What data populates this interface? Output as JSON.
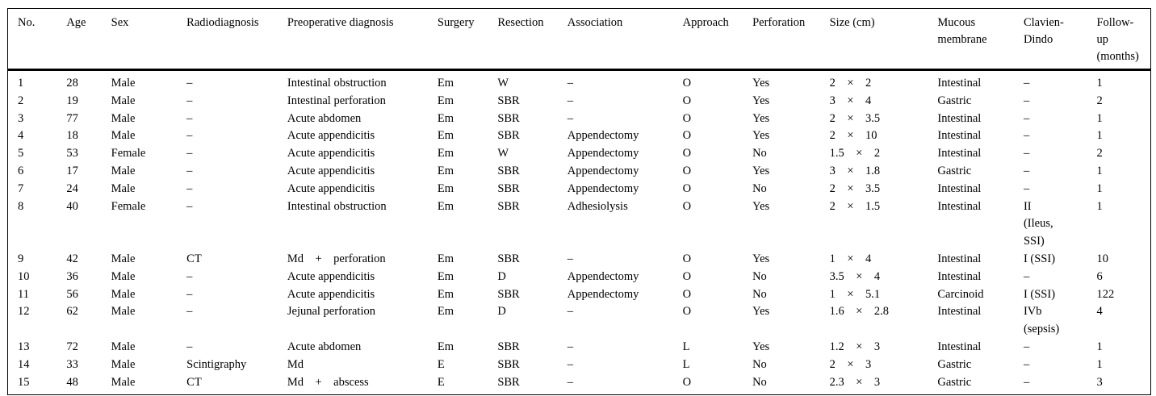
{
  "table": {
    "title": "Patient cases table",
    "columns": [
      {
        "key": "no",
        "label": "No."
      },
      {
        "key": "age",
        "label": "Age"
      },
      {
        "key": "sex",
        "label": "Sex"
      },
      {
        "key": "radiodiagnosis",
        "label": "Radiodiagnosis"
      },
      {
        "key": "preop",
        "label": "Preoperative diagnosis"
      },
      {
        "key": "surgery",
        "label": "Surgery"
      },
      {
        "key": "resection",
        "label": "Resection"
      },
      {
        "key": "association",
        "label": "Association"
      },
      {
        "key": "approach",
        "label": "Approach"
      },
      {
        "key": "perforation",
        "label": "Perforation"
      },
      {
        "key": "size",
        "label": "Size (cm)"
      },
      {
        "key": "mucous",
        "label": "Mucous\nmembrane"
      },
      {
        "key": "clavien",
        "label": "Clavien-\nDindo"
      },
      {
        "key": "followup",
        "label": "Follow-\nup\n(months)"
      }
    ],
    "rows": [
      {
        "no": "1",
        "age": "28",
        "sex": "Male",
        "radiodiagnosis": "–",
        "preop": "Intestinal obstruction",
        "surgery": "Em",
        "resection": "W",
        "association": "–",
        "approach": "O",
        "perforation": "Yes",
        "size": "2    ×    2",
        "mucous": "Intestinal",
        "clavien": "–",
        "followup": "1"
      },
      {
        "no": "2",
        "age": "19",
        "sex": "Male",
        "radiodiagnosis": "–",
        "preop": "Intestinal perforation",
        "surgery": "Em",
        "resection": "SBR",
        "association": "–",
        "approach": "O",
        "perforation": "Yes",
        "size": "3    ×    4",
        "mucous": "Gastric",
        "clavien": "–",
        "followup": "2"
      },
      {
        "no": "3",
        "age": "77",
        "sex": "Male",
        "radiodiagnosis": "–",
        "preop": "Acute abdomen",
        "surgery": "Em",
        "resection": "SBR",
        "association": "–",
        "approach": "O",
        "perforation": "Yes",
        "size": "2    ×    3.5",
        "mucous": "Intestinal",
        "clavien": "–",
        "followup": "1"
      },
      {
        "no": "4",
        "age": "18",
        "sex": "Male",
        "radiodiagnosis": "–",
        "preop": "Acute appendicitis",
        "surgery": "Em",
        "resection": "SBR",
        "association": "Appendectomy",
        "approach": "O",
        "perforation": "Yes",
        "size": "2    ×    10",
        "mucous": "Intestinal",
        "clavien": "–",
        "followup": "1"
      },
      {
        "no": "5",
        "age": "53",
        "sex": "Female",
        "radiodiagnosis": "–",
        "preop": "Acute appendicitis",
        "surgery": "Em",
        "resection": "W",
        "association": "Appendectomy",
        "approach": "O",
        "perforation": "No",
        "size": "1.5    ×    2",
        "mucous": "Intestinal",
        "clavien": "–",
        "followup": "2"
      },
      {
        "no": "6",
        "age": "17",
        "sex": "Male",
        "radiodiagnosis": "–",
        "preop": "Acute appendicitis",
        "surgery": "Em",
        "resection": "SBR",
        "association": "Appendectomy",
        "approach": "O",
        "perforation": "Yes",
        "size": "3    ×    1.8",
        "mucous": "Gastric",
        "clavien": "–",
        "followup": "1"
      },
      {
        "no": "7",
        "age": "24",
        "sex": "Male",
        "radiodiagnosis": "–",
        "preop": "Acute appendicitis",
        "surgery": "Em",
        "resection": "SBR",
        "association": "Appendectomy",
        "approach": "O",
        "perforation": "No",
        "size": "2    ×    3.5",
        "mucous": "Intestinal",
        "clavien": "–",
        "followup": "1"
      },
      {
        "no": "8",
        "age": "40",
        "sex": "Female",
        "radiodiagnosis": "–",
        "preop": "Intestinal obstruction",
        "surgery": "Em",
        "resection": "SBR",
        "association": "Adhesiolysis",
        "approach": "O",
        "perforation": "Yes",
        "size": "2    ×    1.5",
        "mucous": "Intestinal",
        "clavien": "II\n(Ileus,\nSSI)",
        "followup": "1"
      },
      {
        "no": "9",
        "age": "42",
        "sex": "Male",
        "radiodiagnosis": "CT",
        "preop": "Md    +    perforation",
        "surgery": "Em",
        "resection": "SBR",
        "association": "–",
        "approach": "O",
        "perforation": "Yes",
        "size": "1    ×    4",
        "mucous": "Intestinal",
        "clavien": "I (SSI)",
        "followup": "10"
      },
      {
        "no": "10",
        "age": "36",
        "sex": "Male",
        "radiodiagnosis": "–",
        "preop": "Acute appendicitis",
        "surgery": "Em",
        "resection": "D",
        "association": "Appendectomy",
        "approach": "O",
        "perforation": "No",
        "size": "3.5    ×    4",
        "mucous": "Intestinal",
        "clavien": "–",
        "followup": "6"
      },
      {
        "no": "11",
        "age": "56",
        "sex": "Male",
        "radiodiagnosis": "–",
        "preop": "Acute appendicitis",
        "surgery": "Em",
        "resection": "SBR",
        "association": "Appendectomy",
        "approach": "O",
        "perforation": "No",
        "size": "1    ×    5.1",
        "mucous": "Carcinoid",
        "clavien": "I (SSI)",
        "followup": "122"
      },
      {
        "no": "12",
        "age": "62",
        "sex": "Male",
        "radiodiagnosis": "–",
        "preop": "Jejunal perforation",
        "surgery": "Em",
        "resection": "D",
        "association": "–",
        "approach": "O",
        "perforation": "Yes",
        "size": "1.6    ×    2.8",
        "mucous": "Intestinal",
        "clavien": "IVb\n(sepsis)",
        "followup": "4"
      },
      {
        "no": "13",
        "age": "72",
        "sex": "Male",
        "radiodiagnosis": "–",
        "preop": "Acute abdomen",
        "surgery": "Em",
        "resection": "SBR",
        "association": "–",
        "approach": "L",
        "perforation": "Yes",
        "size": "1.2    ×    3",
        "mucous": "Intestinal",
        "clavien": "–",
        "followup": "1"
      },
      {
        "no": "14",
        "age": "33",
        "sex": "Male",
        "radiodiagnosis": "Scintigraphy",
        "preop": "Md",
        "surgery": "E",
        "resection": "SBR",
        "association": "–",
        "approach": "L",
        "perforation": "No",
        "size": "2    ×    3",
        "mucous": "Gastric",
        "clavien": "–",
        "followup": "1"
      },
      {
        "no": "15",
        "age": "48",
        "sex": "Male",
        "radiodiagnosis": "CT",
        "preop": "Md    +    abscess",
        "surgery": "E",
        "resection": "SBR",
        "association": "–",
        "approach": "O",
        "perforation": "No",
        "size": "2.3    ×    3",
        "mucous": "Gastric",
        "clavien": "–",
        "followup": "3"
      }
    ]
  }
}
